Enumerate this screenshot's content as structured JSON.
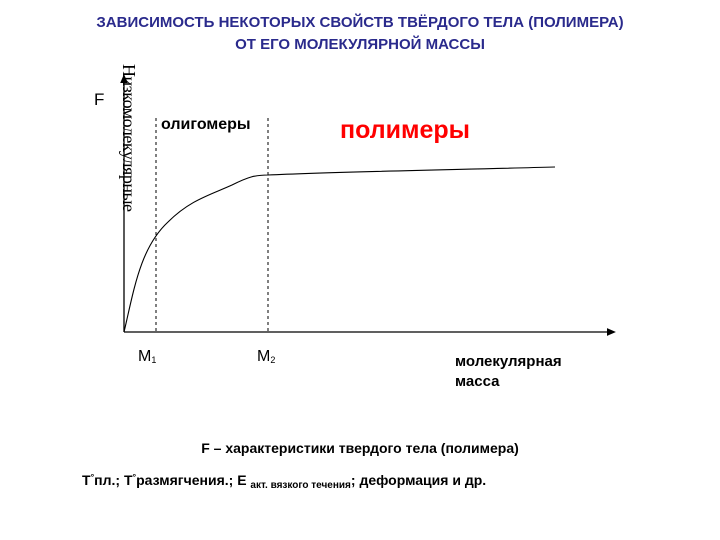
{
  "title": {
    "line1": "ЗАВИСИМОСТЬ НЕКОТОРЫХ СВОЙСТВ ТВЁРДОГО ТЕЛА (ПОЛИМЕРА)",
    "line2": "ОТ ЕГО МОЛЕКУЛЯРНОЙ МАССЫ"
  },
  "diagram": {
    "y_axis_label": "F",
    "x_axis_label": "молекулярная масса",
    "region_low": "Низкомолекулярные",
    "region_oligomers": "олигомеры",
    "region_polymers": "полимеры",
    "marker1": {
      "main": "M",
      "sub": "1"
    },
    "marker2": {
      "main": "M",
      "sub": "2"
    },
    "colors": {
      "title": "#2a2a8c",
      "polymers": "#ff0000",
      "lines": "#000000"
    }
  },
  "caption": {
    "line1": "F – характеристики твердого тела (полимера)",
    "line2_part1": "Т",
    "line2_deg1": "°",
    "line2_part2": "пл.; Т",
    "line2_deg2": "°",
    "line2_part3": "размягчения.; Е ",
    "line2_small": "акт. вязкого течения",
    "line2_part4": "; деформация и др."
  }
}
